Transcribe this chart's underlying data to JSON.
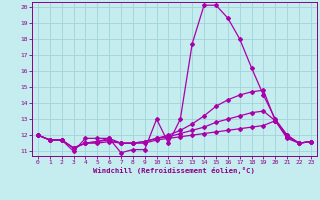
{
  "xlabel": "Windchill (Refroidissement éolien,°C)",
  "xlim": [
    -0.5,
    23.5
  ],
  "ylim": [
    10.7,
    20.3
  ],
  "yticks": [
    11,
    12,
    13,
    14,
    15,
    16,
    17,
    18,
    19,
    20
  ],
  "xticks": [
    0,
    1,
    2,
    3,
    4,
    5,
    6,
    7,
    8,
    9,
    10,
    11,
    12,
    13,
    14,
    15,
    16,
    17,
    18,
    19,
    20,
    21,
    22,
    23
  ],
  "bg_color": "#c5ecee",
  "grid_color": "#a0d4d8",
  "line_color": "#aa00aa",
  "line1_y": [
    12.0,
    11.7,
    11.7,
    11.0,
    11.8,
    11.8,
    11.8,
    10.9,
    11.1,
    11.1,
    13.0,
    11.5,
    13.0,
    17.7,
    20.1,
    20.1,
    19.3,
    18.0,
    16.2,
    14.5,
    13.0,
    12.0,
    11.5,
    11.6
  ],
  "line2_y": [
    12.0,
    11.7,
    11.7,
    11.2,
    11.5,
    11.6,
    11.8,
    11.5,
    11.5,
    11.6,
    11.8,
    12.0,
    12.3,
    12.7,
    13.2,
    13.8,
    14.2,
    14.5,
    14.7,
    14.8,
    12.9,
    12.0,
    11.5,
    11.6
  ],
  "line3_y": [
    12.0,
    11.7,
    11.7,
    11.2,
    11.5,
    11.6,
    11.7,
    11.5,
    11.5,
    11.6,
    11.8,
    11.9,
    12.1,
    12.3,
    12.5,
    12.8,
    13.0,
    13.2,
    13.4,
    13.5,
    12.9,
    11.9,
    11.5,
    11.6
  ],
  "line4_y": [
    12.0,
    11.7,
    11.7,
    11.2,
    11.5,
    11.5,
    11.6,
    11.5,
    11.5,
    11.5,
    11.7,
    11.8,
    11.9,
    12.0,
    12.1,
    12.2,
    12.3,
    12.4,
    12.5,
    12.6,
    12.9,
    11.8,
    11.5,
    11.6
  ]
}
